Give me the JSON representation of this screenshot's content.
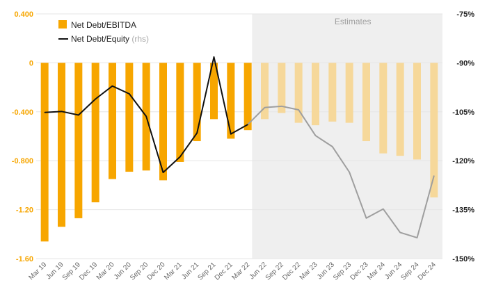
{
  "chart_data": {
    "type": "bar",
    "categories": [
      "Mar 19",
      "Jun 19",
      "Sep 19",
      "Dec 19",
      "Mar 20",
      "Jun 20",
      "Sep 20",
      "Dec 20",
      "Mar 21",
      "Jun 21",
      "Sep 21",
      "Dec 21",
      "Mar 22",
      "Jun 22",
      "Sep 22",
      "Dec 22",
      "Mar 23",
      "Jun 23",
      "Sep 23",
      "Dec 23",
      "Mar 24",
      "Jun 24",
      "Sep 24",
      "Dec 24"
    ],
    "estimates_start_index": 13,
    "estimates_label": "Estimates",
    "series": [
      {
        "name": "Net Debt/EBITDA",
        "type": "bar",
        "axis": "left",
        "values": [
          -1.46,
          -1.34,
          -1.27,
          -1.14,
          -0.95,
          -0.89,
          -0.88,
          -0.96,
          -0.81,
          -0.64,
          -0.46,
          -0.62,
          -0.55,
          -0.46,
          -0.41,
          -0.49,
          -0.51,
          -0.48,
          -0.49,
          -0.64,
          -0.74,
          -0.76,
          -0.79,
          -1.1
        ]
      },
      {
        "name": "Net Debt/Equity",
        "name_suffix": "(rhs)",
        "type": "line",
        "axis": "right",
        "values": [
          -105.2,
          -104.9,
          -106.0,
          -101.1,
          -97.1,
          -99.5,
          -106.4,
          -123.6,
          -118.8,
          -111.5,
          -88.2,
          -111.8,
          -108.9,
          -103.7,
          -103.3,
          -104.4,
          -112.3,
          -115.7,
          -123.5,
          -137.6,
          -134.8,
          -142.0,
          -143.6,
          -124.6
        ]
      }
    ],
    "y_left": {
      "ylim": [
        -1.6,
        0.4
      ],
      "ticks": [
        0.4,
        0,
        -0.4,
        -0.8,
        -1.2,
        -1.6
      ],
      "tick_labels": [
        "0.400",
        "0",
        "-0.400",
        "-0.800",
        "-1.20",
        "-1.60"
      ]
    },
    "y_right": {
      "ylim": [
        -150,
        -75
      ],
      "ticks": [
        -75,
        -90,
        -105,
        -120,
        -135,
        -150
      ],
      "tick_labels": [
        "-75%",
        "-90%",
        "-105%",
        "-120%",
        "-135%",
        "-150%"
      ]
    },
    "legend": {
      "placement": "top-left"
    },
    "grid": true,
    "colors": {
      "bar_actual": "#F7A600",
      "bar_estimate": "#F6D89A",
      "line_actual": "#111111",
      "line_estimate": "#9E9E9E",
      "estimates_shade": "#EFEFEF",
      "grid": "#E6E6E6"
    }
  }
}
